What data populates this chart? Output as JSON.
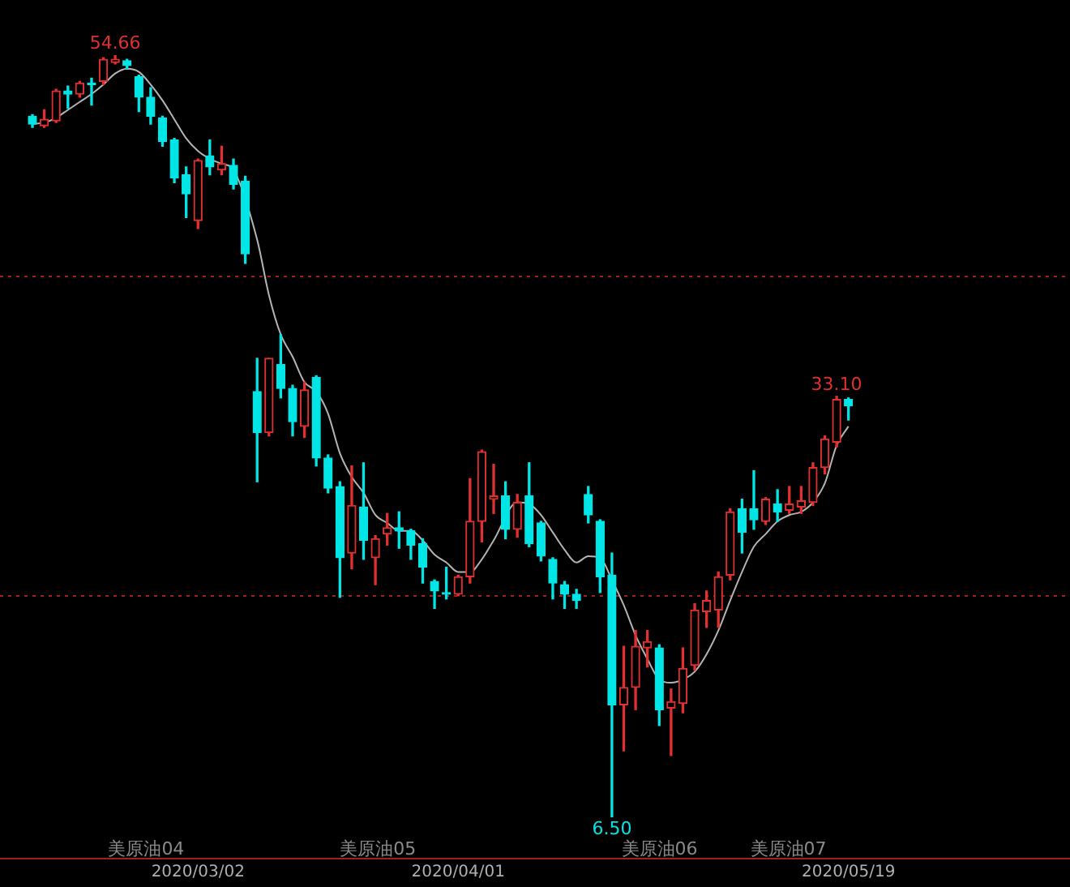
{
  "chart_data": {
    "type": "candlestick",
    "categories": [
      null,
      null,
      null,
      null,
      null,
      null,
      null,
      null,
      null,
      null,
      null,
      null,
      null,
      null,
      "2020/03/02",
      null,
      null,
      null,
      null,
      null,
      null,
      null,
      null,
      null,
      null,
      null,
      null,
      null,
      null,
      null,
      null,
      null,
      null,
      null,
      null,
      null,
      "2020/04/01",
      null,
      null,
      null,
      null,
      null,
      null,
      null,
      null,
      null,
      null,
      null,
      null,
      null,
      null,
      null,
      null,
      null,
      null,
      null,
      null,
      null,
      null,
      null,
      null,
      null,
      null,
      null,
      null,
      null,
      null,
      null,
      null,
      "2020/05/19"
    ],
    "ohlc": [
      [
        50.8,
        50.9,
        50.1,
        50.3
      ],
      [
        50.2,
        51.2,
        50.1,
        50.6
      ],
      [
        50.5,
        52.5,
        50.4,
        52.4
      ],
      [
        52.4,
        52.7,
        51.3,
        52.2
      ],
      [
        52.2,
        53.0,
        52.0,
        52.9
      ],
      [
        52.9,
        53.2,
        51.5,
        52.8
      ],
      [
        53.0,
        54.5,
        52.8,
        54.4
      ],
      [
        54.2,
        54.66,
        54.1,
        54.4
      ],
      [
        54.3,
        54.4,
        53.8,
        54.0
      ],
      [
        53.3,
        53.4,
        51.1,
        52.0
      ],
      [
        52.0,
        52.6,
        50.3,
        50.8
      ],
      [
        50.7,
        50.8,
        48.9,
        49.2
      ],
      [
        49.3,
        49.4,
        46.6,
        46.9
      ],
      [
        47.1,
        47.6,
        44.4,
        45.9
      ],
      [
        44.2,
        48.1,
        43.7,
        48.0
      ],
      [
        48.3,
        49.3,
        47.1,
        47.6
      ],
      [
        47.4,
        48.9,
        47.1,
        47.8
      ],
      [
        47.7,
        48.1,
        46.2,
        46.5
      ],
      [
        46.7,
        47.0,
        41.5,
        42.1
      ],
      [
        33.4,
        35.5,
        27.7,
        30.8
      ],
      [
        30.8,
        35.5,
        30.6,
        35.5
      ],
      [
        35.1,
        37.0,
        33.0,
        33.6
      ],
      [
        33.6,
        33.8,
        30.6,
        31.5
      ],
      [
        31.2,
        34.0,
        30.5,
        33.5
      ],
      [
        34.3,
        34.4,
        28.7,
        29.2
      ],
      [
        29.2,
        29.4,
        27.0,
        27.3
      ],
      [
        27.4,
        27.7,
        20.4,
        22.9
      ],
      [
        23.2,
        28.7,
        22.2,
        26.2
      ],
      [
        26.1,
        28.9,
        22.8,
        24.0
      ],
      [
        22.9,
        24.3,
        21.2,
        24.1
      ],
      [
        24.4,
        25.7,
        23.7,
        24.8
      ],
      [
        24.8,
        25.8,
        23.5,
        24.6
      ],
      [
        24.6,
        24.7,
        22.8,
        23.7
      ],
      [
        23.8,
        24.1,
        21.3,
        22.3
      ],
      [
        21.4,
        21.5,
        19.7,
        20.8
      ],
      [
        20.7,
        22.3,
        20.3,
        20.6
      ],
      [
        20.6,
        21.8,
        20.5,
        21.7
      ],
      [
        21.7,
        27.9,
        21.3,
        25.2
      ],
      [
        25.2,
        29.7,
        23.9,
        29.6
      ],
      [
        26.6,
        28.8,
        25.7,
        26.8
      ],
      [
        26.8,
        27.7,
        24.1,
        24.7
      ],
      [
        24.7,
        26.9,
        24.2,
        26.4
      ],
      [
        26.8,
        28.9,
        23.6,
        23.8
      ],
      [
        25.1,
        25.2,
        22.7,
        23.0
      ],
      [
        22.8,
        22.9,
        20.3,
        21.3
      ],
      [
        21.2,
        21.4,
        19.7,
        20.6
      ],
      [
        20.6,
        20.9,
        19.7,
        20.2
      ],
      [
        26.9,
        27.4,
        25.1,
        25.6
      ],
      [
        25.2,
        25.3,
        20.7,
        21.7
      ],
      [
        21.8,
        23.2,
        6.5,
        13.6
      ],
      [
        13.6,
        17.3,
        10.7,
        14.7
      ],
      [
        14.7,
        18.3,
        13.3,
        17.3
      ],
      [
        17.2,
        18.3,
        16.0,
        17.6
      ],
      [
        17.2,
        17.4,
        12.3,
        13.3
      ],
      [
        13.4,
        14.6,
        10.4,
        13.8
      ],
      [
        13.7,
        17.2,
        13.1,
        15.9
      ],
      [
        16.1,
        20.0,
        15.8,
        19.6
      ],
      [
        19.5,
        20.8,
        18.5,
        20.2
      ],
      [
        19.6,
        22.0,
        18.5,
        21.7
      ],
      [
        21.8,
        26.0,
        21.5,
        25.8
      ],
      [
        26.0,
        26.6,
        23.2,
        24.5
      ],
      [
        26.0,
        28.4,
        24.7,
        25.3
      ],
      [
        25.2,
        26.7,
        25.0,
        26.6
      ],
      [
        26.3,
        27.2,
        25.2,
        25.8
      ],
      [
        25.9,
        27.4,
        25.7,
        26.3
      ],
      [
        26.1,
        27.4,
        25.7,
        26.5
      ],
      [
        26.4,
        28.9,
        26.2,
        28.6
      ],
      [
        28.6,
        30.6,
        28.2,
        30.4
      ],
      [
        30.2,
        33.1,
        29.9,
        32.9
      ],
      [
        32.9,
        33.0,
        31.6,
        32.5
      ]
    ],
    "colors": [
      "#00e5e5",
      "#e03030",
      "#e03030",
      "#00e5e5",
      "#e03030",
      "#00e5e5",
      "#e03030",
      "#e03030",
      "#00e5e5",
      "#00e5e5",
      "#00e5e5",
      "#00e5e5",
      "#00e5e5",
      "#00e5e5",
      "#e03030",
      "#00e5e5",
      "#e03030",
      "#00e5e5",
      "#00e5e5",
      "#00e5e5",
      "#e03030",
      "#00e5e5",
      "#00e5e5",
      "#e03030",
      "#00e5e5",
      "#00e5e5",
      "#00e5e5",
      "#e03030",
      "#00e5e5",
      "#e03030",
      "#e03030",
      "#00e5e5",
      "#00e5e5",
      "#00e5e5",
      "#00e5e5",
      "#00e5e5",
      "#e03030",
      "#e03030",
      "#e03030",
      "#e03030",
      "#00e5e5",
      "#e03030",
      "#00e5e5",
      "#00e5e5",
      "#00e5e5",
      "#00e5e5",
      "#00e5e5",
      "#00e5e5",
      "#00e5e5",
      "#00e5e5",
      "#e03030",
      "#e03030",
      "#e03030",
      "#00e5e5",
      "#e03030",
      "#e03030",
      "#e03030",
      "#e03030",
      "#e03030",
      "#e03030",
      "#00e5e5",
      "#00e5e5",
      "#e03030",
      "#00e5e5",
      "#e03030",
      "#e03030",
      "#e03030",
      "#e03030",
      "#e03030",
      "#00e5e5"
    ],
    "series": [
      {
        "type": "line",
        "color": "#b4b4b4",
        "values": [
          50.3,
          50.4,
          50.7,
          51.2,
          51.7,
          52.2,
          52.8,
          53.5,
          53.8,
          53.6,
          52.8,
          51.8,
          50.6,
          49.4,
          48.6,
          48.1,
          47.8,
          47.4,
          null,
          43.0,
          39.5,
          37.0,
          35.6,
          34.0,
          33.4,
          32.0,
          29.5,
          28.0,
          27.0,
          25.6,
          25.1,
          24.6,
          24.6,
          24.0,
          23.1,
          22.6,
          22.0,
          22.0,
          22.8,
          24.0,
          null,
          26.4,
          26.3,
          25.6,
          24.5,
          23.4,
          22.6,
          23.0,
          22.9,
          21.5,
          19.9,
          18.0,
          16.5,
          15.2,
          15.0,
          15.2,
          15.7,
          16.8,
          18.3,
          20.2,
          22.0,
          23.6,
          24.4,
          25.2,
          25.6,
          25.8,
          26.4,
          27.6,
          30.0,
          31.2
        ]
      }
    ],
    "marker": "none",
    "ref_lines": [
      {
        "axis": "y",
        "value": 40.7,
        "color": "#a02020",
        "line_style": "dotted"
      },
      {
        "axis": "y",
        "value": 20.5,
        "color": "#a02020",
        "line_style": "dotted"
      }
    ],
    "annotations": [
      {
        "text": "54.66",
        "y": 54.66
      },
      {
        "text": "33.10",
        "y": 33.1
      },
      {
        "text": "6.50",
        "y": 6.5
      },
      "美原油04",
      "美原油05",
      "美原油06",
      "美原油07"
    ],
    "legend": false,
    "tick_labels": "x"
  }
}
